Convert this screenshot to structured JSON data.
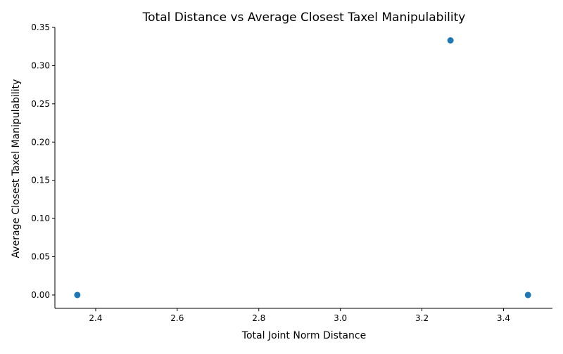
{
  "chart_data": {
    "type": "scatter",
    "title": "Total Distance vs Average Closest Taxel Manipulability",
    "xlabel": "Total Joint Norm Distance",
    "ylabel": "Average Closest Taxel Manipulability",
    "xlim": [
      2.3,
      3.52
    ],
    "ylim": [
      -0.0175,
      0.35
    ],
    "xticks": [
      2.4,
      2.6,
      2.8,
      3.0,
      3.2,
      3.4
    ],
    "xtick_labels": [
      "2.4",
      "2.6",
      "2.8",
      "3.0",
      "3.2",
      "3.4"
    ],
    "yticks": [
      0.0,
      0.05,
      0.1,
      0.15,
      0.2,
      0.25,
      0.3,
      0.35
    ],
    "ytick_labels": [
      "0.00",
      "0.05",
      "0.10",
      "0.15",
      "0.20",
      "0.25",
      "0.30",
      "0.35"
    ],
    "grid": false,
    "marker_color": "#1f77b4",
    "points": [
      {
        "x": 2.355,
        "y": 0.0
      },
      {
        "x": 3.27,
        "y": 0.333
      },
      {
        "x": 3.46,
        "y": 0.0
      }
    ]
  }
}
